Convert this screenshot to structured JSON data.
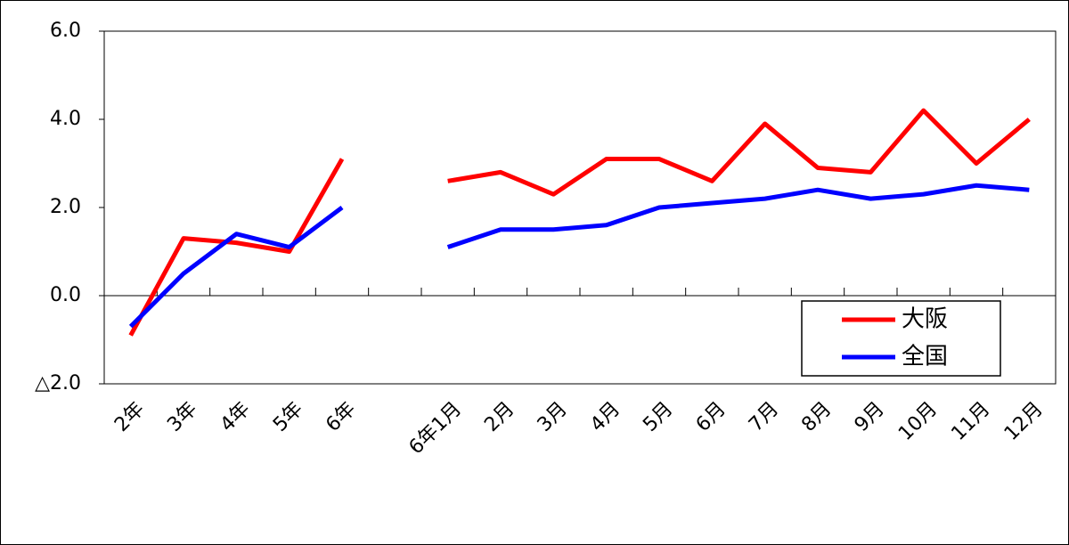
{
  "chart_data": {
    "type": "line",
    "categories": [
      "2年",
      "3年",
      "4年",
      "5年",
      "6年",
      null,
      "6年1月",
      "2月",
      "3月",
      "4月",
      "5月",
      "6月",
      "7月",
      "8月",
      "9月",
      "10月",
      "11月",
      "12月"
    ],
    "series": [
      {
        "name": "大阪",
        "color": "#ff0000",
        "values": [
          -0.9,
          1.3,
          1.2,
          1.0,
          3.1,
          null,
          2.6,
          2.8,
          2.3,
          3.1,
          3.1,
          2.6,
          3.9,
          2.9,
          2.8,
          4.2,
          3.0,
          4.0
        ]
      },
      {
        "name": "全国",
        "color": "#0000ff",
        "values": [
          -0.7,
          0.5,
          1.4,
          1.1,
          2.0,
          null,
          1.1,
          1.5,
          1.5,
          1.6,
          2.0,
          2.1,
          2.2,
          2.4,
          2.2,
          2.3,
          2.5,
          2.4
        ]
      }
    ],
    "ylim": [
      -2,
      6
    ],
    "yticks": [
      {
        "value": -2,
        "label": "△2.0"
      },
      {
        "value": 0,
        "label": "0.0"
      },
      {
        "value": 2,
        "label": "2.0"
      },
      {
        "value": 4,
        "label": "4.0"
      },
      {
        "value": 6,
        "label": "6.0"
      }
    ]
  }
}
